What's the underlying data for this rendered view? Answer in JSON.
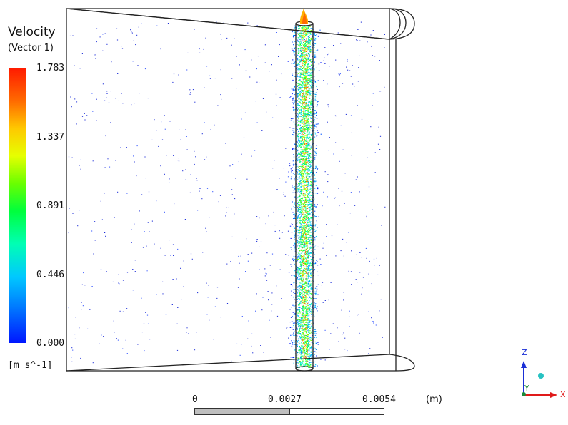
{
  "legend": {
    "title": "Velocity",
    "subtitle": "(Vector 1)",
    "ticks": [
      "1.783",
      "1.337",
      "0.891",
      "0.446",
      "0.000"
    ],
    "units": "[m s^-1]",
    "color_low": "#0016ff",
    "color_high": "#ff1a00"
  },
  "scale": {
    "labels": [
      "0",
      "0.0027",
      "0.0054"
    ],
    "unit": "(m)"
  },
  "triad": {
    "z_label": "Z",
    "x_label": "X",
    "y_label": "Y",
    "z_color": "#1a2fd6",
    "x_color": "#e01a1a",
    "y_color": "#1b8a3a",
    "sphere_color": "#27c2c2"
  }
}
